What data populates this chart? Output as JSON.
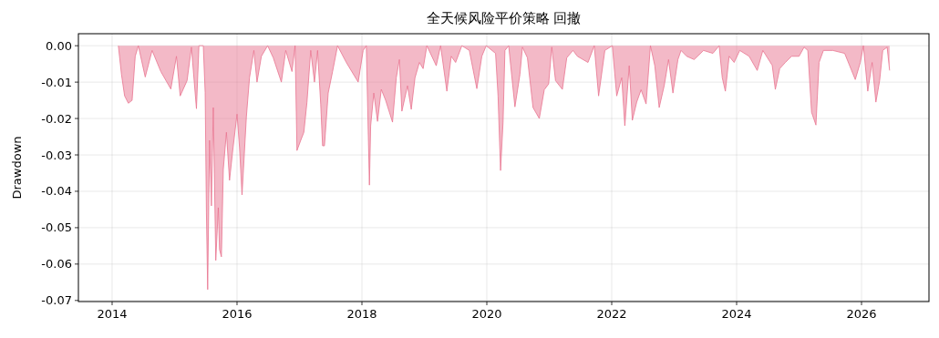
{
  "chart_data": {
    "type": "area",
    "title": "全天候风险平价策略 回撤",
    "ylabel": "Drawdown",
    "xlim": [
      2013.46,
      2027.08
    ],
    "xticks": [
      2014,
      2016,
      2018,
      2020,
      2022,
      2024,
      2026
    ],
    "ylim": [
      -0.0703,
      0.0033
    ],
    "yticks": [
      {
        "value": 0,
        "label": "0.00"
      },
      {
        "value": -0.01,
        "label": "-0.01"
      },
      {
        "value": -0.02,
        "label": "-0.02"
      },
      {
        "value": -0.03,
        "label": "-0.03"
      },
      {
        "value": -0.04,
        "label": "-0.04"
      },
      {
        "value": -0.05,
        "label": "-0.05"
      },
      {
        "value": -0.06,
        "label": "-0.06"
      },
      {
        "value": -0.07,
        "label": "-0.07"
      }
    ],
    "grid": true,
    "series": [
      {
        "color": "#e8738f",
        "x": [
          2014.1,
          2014.15,
          2014.2,
          2014.26,
          2014.32,
          2014.37,
          2014.42,
          2014.53,
          2014.64,
          2014.78,
          2014.94,
          2015.03,
          2015.09,
          2015.2,
          2015.27,
          2015.35,
          2015.39,
          2015.46,
          2015.49,
          2015.51,
          2015.53,
          2015.56,
          2015.59,
          2015.62,
          2015.66,
          2015.7,
          2015.72,
          2015.75,
          2015.78,
          2015.83,
          2015.88,
          2015.93,
          2016.0,
          2016.04,
          2016.08,
          2016.15,
          2016.2,
          2016.27,
          2016.32,
          2016.39,
          2016.49,
          2016.58,
          2016.71,
          2016.78,
          2016.88,
          2016.93,
          2016.96,
          2017.02,
          2017.07,
          2017.12,
          2017.18,
          2017.24,
          2017.29,
          2017.34,
          2017.37,
          2017.4,
          2017.46,
          2017.53,
          2017.61,
          2017.75,
          2017.94,
          2018.02,
          2018.07,
          2018.12,
          2018.14,
          2018.19,
          2018.25,
          2018.31,
          2018.38,
          2018.49,
          2018.55,
          2018.6,
          2018.64,
          2018.73,
          2018.79,
          2018.85,
          2018.92,
          2018.98,
          2019.04,
          2019.19,
          2019.26,
          2019.36,
          2019.43,
          2019.5,
          2019.6,
          2019.72,
          2019.84,
          2019.92,
          2019.99,
          2020.14,
          2020.18,
          2020.22,
          2020.26,
          2020.29,
          2020.35,
          2020.45,
          2020.53,
          2020.57,
          2020.65,
          2020.74,
          2020.84,
          2020.92,
          2020.99,
          2021.04,
          2021.1,
          2021.21,
          2021.28,
          2021.38,
          2021.45,
          2021.62,
          2021.72,
          2021.79,
          2021.89,
          2022.01,
          2022.08,
          2022.16,
          2022.21,
          2022.28,
          2022.33,
          2022.4,
          2022.47,
          2022.55,
          2022.62,
          2022.69,
          2022.76,
          2022.84,
          2022.91,
          2022.98,
          2023.06,
          2023.11,
          2023.2,
          2023.32,
          2023.47,
          2023.62,
          2023.72,
          2023.77,
          2023.82,
          2023.88,
          2023.96,
          2024.05,
          2024.2,
          2024.33,
          2024.42,
          2024.57,
          2024.62,
          2024.69,
          2024.78,
          2024.88,
          2025.0,
          2025.08,
          2025.14,
          2025.2,
          2025.27,
          2025.32,
          2025.39,
          2025.54,
          2025.73,
          2025.9,
          2025.98,
          2026.03,
          2026.1,
          2026.17,
          2026.23,
          2026.29,
          2026.34,
          2026.41,
          2026.45
        ],
        "values": [
          0,
          -0.0079,
          -0.0138,
          -0.0158,
          -0.015,
          -0.0029,
          0,
          -0.0086,
          -0.0013,
          -0.0071,
          -0.0119,
          -0.0029,
          -0.0138,
          -0.0096,
          -0.0004,
          -0.0173,
          0,
          0,
          -0.0129,
          -0.046,
          -0.067,
          -0.026,
          -0.044,
          -0.017,
          -0.059,
          -0.0445,
          -0.056,
          -0.058,
          -0.034,
          -0.0238,
          -0.037,
          -0.029,
          -0.0188,
          -0.028,
          -0.041,
          -0.0195,
          -0.0088,
          -0.0013,
          -0.01,
          -0.0029,
          0,
          -0.0033,
          -0.01,
          -0.0013,
          -0.0071,
          0,
          -0.0288,
          -0.026,
          -0.0238,
          -0.0155,
          -0.0013,
          -0.01,
          -0.0013,
          -0.016,
          -0.0275,
          -0.0275,
          -0.013,
          -0.0071,
          0,
          -0.0046,
          -0.01,
          -0.0013,
          0,
          -0.0383,
          -0.022,
          -0.013,
          -0.0208,
          -0.012,
          -0.015,
          -0.021,
          -0.0088,
          -0.0038,
          -0.018,
          -0.011,
          -0.0175,
          -0.0088,
          -0.0046,
          -0.0063,
          0,
          -0.0055,
          0,
          -0.0125,
          -0.0029,
          -0.0046,
          0,
          -0.0013,
          -0.0118,
          -0.0029,
          0,
          -0.0021,
          -0.0138,
          -0.0343,
          -0.021,
          -0.0013,
          0,
          -0.0168,
          -0.0079,
          -0.0004,
          -0.0033,
          -0.017,
          -0.02,
          -0.0121,
          -0.0105,
          -0.0004,
          -0.0096,
          -0.012,
          -0.0033,
          -0.0013,
          -0.0029,
          -0.0046,
          0,
          -0.0138,
          -0.0013,
          0,
          -0.0138,
          -0.0088,
          -0.022,
          -0.0055,
          -0.0205,
          -0.0155,
          -0.0121,
          -0.016,
          0,
          -0.0055,
          -0.017,
          -0.011,
          -0.0038,
          -0.013,
          -0.0038,
          -0.0013,
          -0.0029,
          -0.0038,
          -0.0013,
          -0.0021,
          0,
          -0.0088,
          -0.0125,
          -0.0029,
          -0.0046,
          -0.0013,
          -0.0029,
          -0.0068,
          -0.0013,
          -0.0054,
          -0.012,
          -0.0063,
          -0.0046,
          -0.0029,
          -0.0029,
          -0.0004,
          -0.0013,
          -0.0183,
          -0.0218,
          -0.0046,
          -0.0013,
          -0.0013,
          -0.0021,
          -0.0093,
          -0.0046,
          0,
          -0.0125,
          -0.0046,
          -0.0155,
          -0.0096,
          -0.0013,
          -0.0004,
          -0.0068
        ]
      }
    ]
  }
}
